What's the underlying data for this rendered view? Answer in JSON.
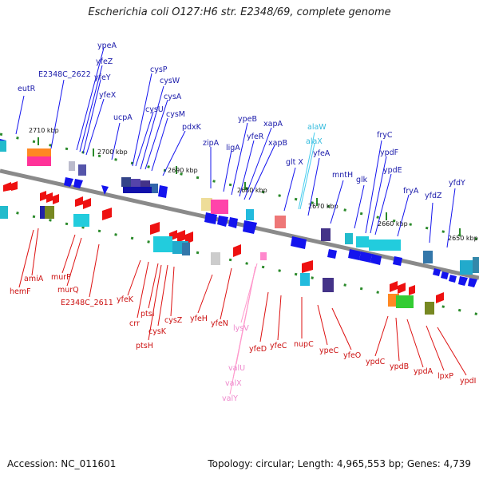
{
  "title": "Escherichia coli O127:H6 str. E2348/69, complete genome",
  "footer": {
    "accession": "Accession: NC_011601",
    "summary": "Topology: circular; Length: 4,965,553 bp; Genes: 4,739"
  },
  "colors": {
    "forward_label": "#1a1aaa",
    "reverse_label": "#cc1111",
    "rna_label": "#33bbdd",
    "trna_label": "#ee88cc",
    "forward_arrow": "#1414ee",
    "reverse_arrow": "#ee1111",
    "backbone": "#888888"
  },
  "ticks": [
    "2710 kbp",
    "2700 kbp",
    "2690 kbp",
    "2680 kbp",
    "2670 kbp",
    "2660 kbp",
    "2650 kbp"
  ],
  "forward_labels": [
    "eutR",
    "E2348C_2622",
    "ypeA",
    "yfeZ",
    "yfeY",
    "yfeX",
    "ucpA",
    "cysP",
    "cysW",
    "cysU",
    "cysA",
    "cysM",
    "pdxK",
    "zipA",
    "ligA",
    "ypeB",
    "yfeR",
    "xapA",
    "xapB",
    "glt X",
    "alaW",
    "alaX",
    "yfeA",
    "mntH",
    "glk",
    "fryC",
    "ypdF",
    "ypdE",
    "fryA",
    "yfdZ",
    "yfdY"
  ],
  "reverse_labels": [
    "amiA",
    "hemF",
    "murP",
    "murQ",
    "E2348C_2611",
    "yfeK",
    "crr",
    "ptsI",
    "ptsH",
    "cysK",
    "cysZ",
    "yfeH",
    "yfeN",
    "lysV",
    "valU",
    "valX",
    "valY",
    "yfeD",
    "yfeC",
    "nupC",
    "ypeC",
    "yfeO",
    "ypdC",
    "ypdB",
    "ypdA",
    "lpxP",
    "ypdI"
  ]
}
